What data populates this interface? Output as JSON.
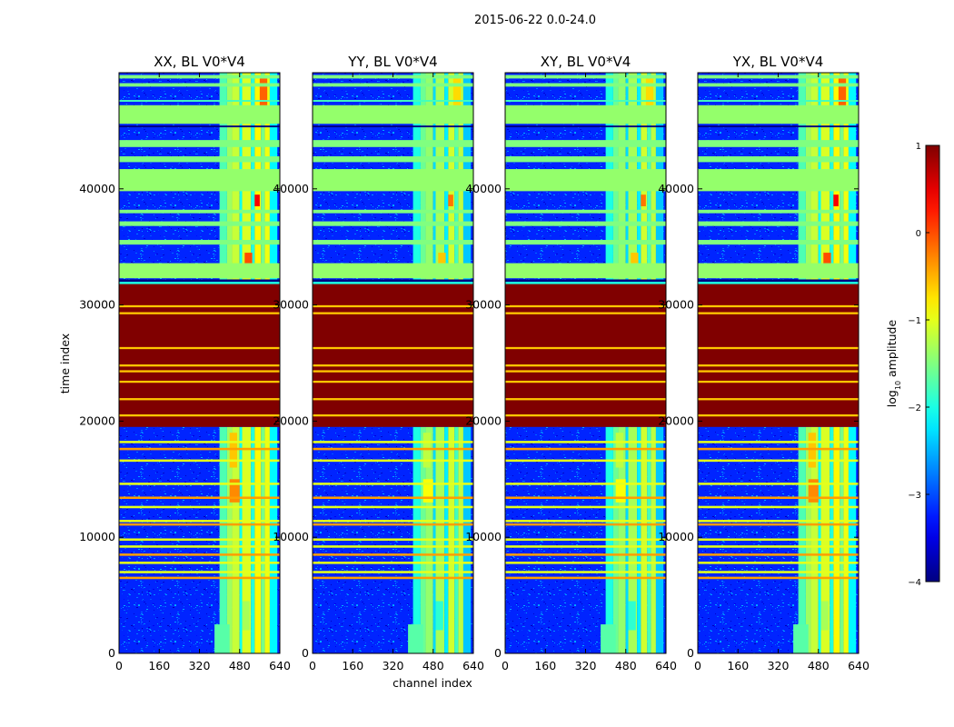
{
  "chart_data": {
    "type": "heatmap",
    "suptitle": "2015-06-22 0.0-24.0",
    "xlabel": "channel index",
    "ylabel": "time index",
    "colormap": "jet",
    "colorbar": {
      "label": "log10 amplitude",
      "label_main": "log",
      "label_sub": "10",
      "label_rest": " amplitude",
      "range": [
        -4,
        1
      ],
      "ticks": [
        1,
        0,
        -1,
        -2,
        -3,
        -4
      ],
      "tick_labels": [
        "1",
        "0",
        "−1",
        "−2",
        "−3",
        "−4"
      ]
    },
    "x_range": [
      0,
      640
    ],
    "x_ticks": [
      0,
      160,
      320,
      480,
      640
    ],
    "x_tick_labels": [
      "0",
      "160",
      "320",
      "480",
      "640"
    ],
    "y_range": [
      0,
      50000
    ],
    "y_ticks": [
      0,
      10000,
      20000,
      30000,
      40000
    ],
    "y_tick_labels": [
      "0",
      "10000",
      "20000",
      "30000",
      "40000"
    ],
    "panels": [
      {
        "title": "XX, BL V0*V4",
        "polarization": "XX"
      },
      {
        "title": "YY, BL V0*V4",
        "polarization": "YY"
      },
      {
        "title": "XY, BL V0*V4",
        "polarization": "XY"
      },
      {
        "title": "YX, BL V0*V4",
        "polarization": "YX"
      }
    ],
    "approx_features": {
      "background_log_amplitude": -3.2,
      "bright_channel_band": [
        400,
        630
      ],
      "bright_band_log_amplitude": -1.3,
      "saturated_time_range": [
        19500,
        32000
      ],
      "saturated_log_amplitude": 1,
      "flagged_band_log_amplitude": -1.4,
      "flagged_time_ranges": [
        [
          32300,
          33600
        ],
        [
          39800,
          41700
        ],
        [
          45600,
          47200
        ]
      ]
    }
  }
}
